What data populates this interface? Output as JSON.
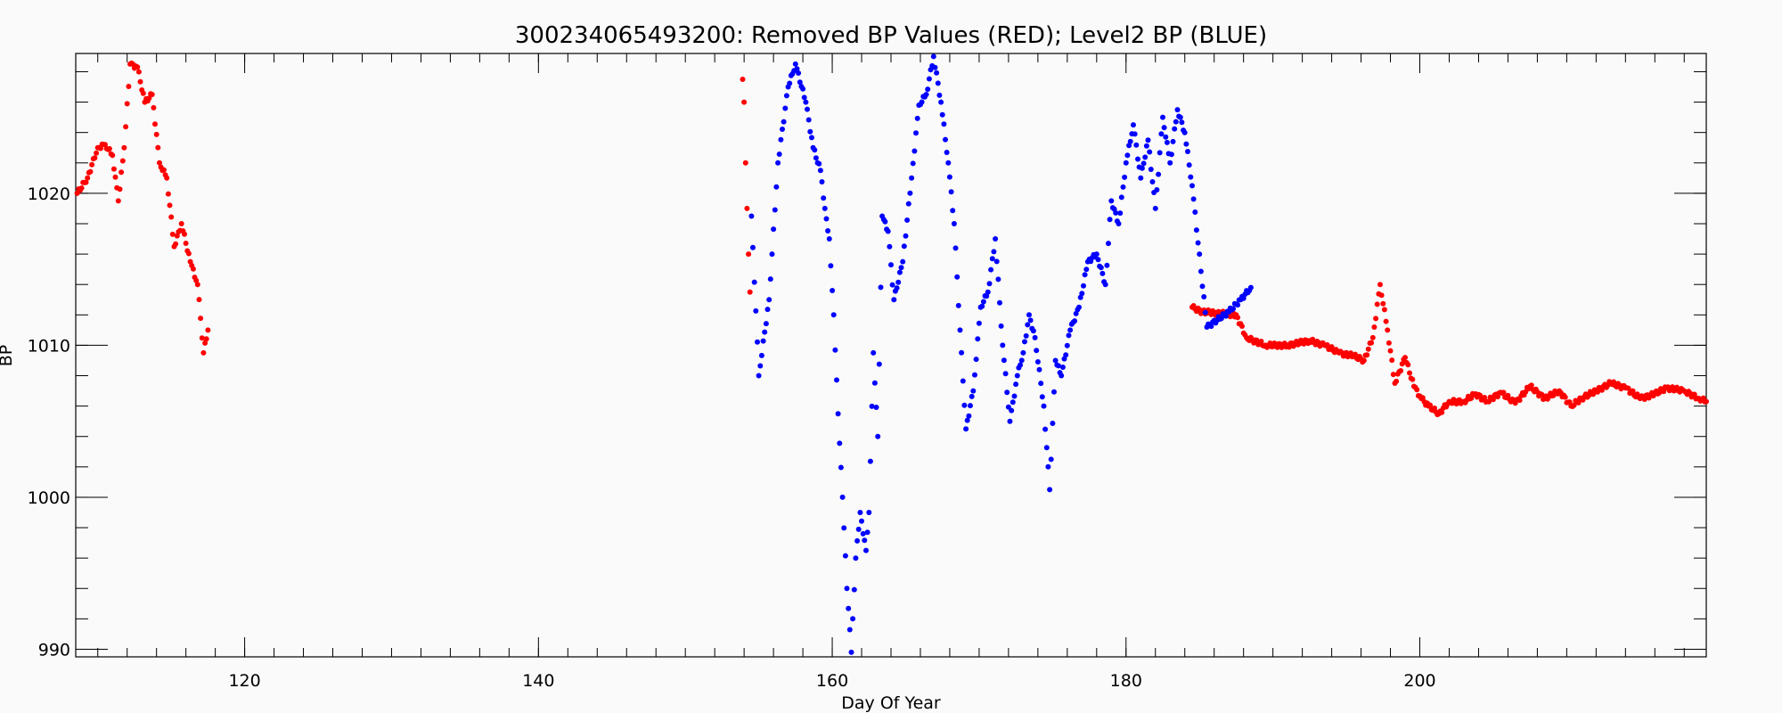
{
  "chart_data": {
    "type": "scatter",
    "title": "300234065493200: Removed BP Values (RED); Level2 BP (BLUE)",
    "xlabel": "Day Of Year",
    "ylabel": "BP",
    "xlim": [
      108.5,
      219.5
    ],
    "ylim": [
      989.5,
      1029.2
    ],
    "x_ticks": [
      120,
      140,
      160,
      180,
      200
    ],
    "y_ticks": [
      990,
      1000,
      1010,
      1020
    ],
    "x_minor_step": 2,
    "y_minor_step": 2,
    "grid": false,
    "series": [
      {
        "color": "#ff0000",
        "anchors": [
          [
            108.6,
            1020
          ],
          [
            109.3,
            1021
          ],
          [
            110,
            1023
          ],
          [
            110.5,
            1023.2
          ],
          [
            111,
            1022.5
          ],
          [
            111.4,
            1019.5
          ],
          [
            111.8,
            1023
          ],
          [
            112.2,
            1028.5
          ],
          [
            112.7,
            1028.3
          ],
          [
            113.2,
            1026
          ],
          [
            113.7,
            1026.5
          ],
          [
            114.2,
            1022
          ],
          [
            114.7,
            1021
          ],
          [
            115.2,
            1016.5
          ],
          [
            115.7,
            1018
          ],
          [
            116.3,
            1015.5
          ],
          [
            116.8,
            1014
          ],
          [
            117.2,
            1009.5
          ],
          [
            117.5,
            1011
          ],
          [
            153.9,
            1027.5
          ],
          [
            154,
            1026
          ],
          [
            154.1,
            1022
          ],
          [
            154.2,
            1019
          ],
          [
            154.3,
            1016
          ],
          [
            154.4,
            1013.5
          ],
          [
            184.5,
            1012.5
          ],
          [
            185.2,
            1012.2
          ],
          [
            187.5,
            1012
          ],
          [
            188.2,
            1010.5
          ],
          [
            189.5,
            1010
          ],
          [
            191,
            1010
          ],
          [
            192.5,
            1010.3
          ],
          [
            193.5,
            1010
          ],
          [
            194.5,
            1009.5
          ],
          [
            195.5,
            1009.3
          ],
          [
            196.2,
            1009
          ],
          [
            196.8,
            1010.5
          ],
          [
            197.3,
            1014
          ],
          [
            197.8,
            1011
          ],
          [
            198.3,
            1007.5
          ],
          [
            199,
            1009.2
          ],
          [
            199.6,
            1007.3
          ],
          [
            200.1,
            1006.5
          ],
          [
            200.6,
            1006
          ],
          [
            201.3,
            1005.5
          ],
          [
            202,
            1006.3
          ],
          [
            203,
            1006.3
          ],
          [
            203.8,
            1006.8
          ],
          [
            204.6,
            1006.3
          ],
          [
            205.5,
            1006.9
          ],
          [
            206.5,
            1006.2
          ],
          [
            207.5,
            1007.3
          ],
          [
            208.5,
            1006.5
          ],
          [
            209.5,
            1007
          ],
          [
            210.3,
            1006
          ],
          [
            211,
            1006.5
          ],
          [
            212,
            1007
          ],
          [
            213,
            1007.5
          ],
          [
            214,
            1007.2
          ],
          [
            215,
            1006.5
          ],
          [
            216,
            1006.8
          ],
          [
            216.8,
            1007.2
          ],
          [
            218,
            1007
          ],
          [
            219,
            1006.5
          ],
          [
            219.5,
            1006.3
          ]
        ]
      },
      {
        "color": "#0000ff",
        "anchors": [
          [
            154.5,
            1018.5
          ],
          [
            155,
            1008
          ],
          [
            155.7,
            1013
          ],
          [
            156.3,
            1022
          ],
          [
            157,
            1027
          ],
          [
            157.5,
            1028.5
          ],
          [
            158.2,
            1026
          ],
          [
            158.7,
            1023
          ],
          [
            159.2,
            1021.5
          ],
          [
            159.5,
            1019
          ],
          [
            159.8,
            1017
          ],
          [
            160.1,
            1012
          ],
          [
            160.4,
            1005.5
          ],
          [
            160.7,
            1000
          ],
          [
            161,
            994
          ],
          [
            161.3,
            989.8
          ],
          [
            161.6,
            996
          ],
          [
            161.9,
            999
          ],
          [
            162.3,
            996.5
          ],
          [
            162.5,
            999
          ],
          [
            162.8,
            1009.5
          ],
          [
            163.1,
            1004
          ],
          [
            163.4,
            1018.5
          ],
          [
            163.8,
            1017.5
          ],
          [
            164.2,
            1013
          ],
          [
            164.8,
            1015.5
          ],
          [
            165.4,
            1021
          ],
          [
            165.9,
            1025.8
          ],
          [
            166.4,
            1026.5
          ],
          [
            166.9,
            1029
          ],
          [
            167.4,
            1026
          ],
          [
            167.9,
            1022
          ],
          [
            168.3,
            1018
          ],
          [
            168.7,
            1011
          ],
          [
            169.1,
            1004.5
          ],
          [
            169.6,
            1007
          ],
          [
            170.1,
            1012.5
          ],
          [
            170.6,
            1013.5
          ],
          [
            171.1,
            1017
          ],
          [
            171.6,
            1010
          ],
          [
            172.1,
            1005
          ],
          [
            172.6,
            1008
          ],
          [
            173,
            1009.5
          ],
          [
            173.4,
            1012
          ],
          [
            173.8,
            1010.5
          ],
          [
            174.4,
            1006
          ],
          [
            174.8,
            1000.5
          ],
          [
            175.2,
            1009
          ],
          [
            175.6,
            1008
          ],
          [
            176.2,
            1011
          ],
          [
            176.8,
            1012.5
          ],
          [
            177.4,
            1015.5
          ],
          [
            178,
            1016
          ],
          [
            178.6,
            1014
          ],
          [
            179,
            1019.5
          ],
          [
            179.5,
            1018
          ],
          [
            180,
            1022
          ],
          [
            180.5,
            1024.5
          ],
          [
            181,
            1021
          ],
          [
            181.5,
            1023.5
          ],
          [
            182,
            1019
          ],
          [
            182.5,
            1025
          ],
          [
            183,
            1022
          ],
          [
            183.5,
            1025.5
          ],
          [
            184,
            1024
          ],
          [
            184.5,
            1020.5
          ],
          [
            185.5,
            1011.2
          ],
          [
            187,
            1012.2
          ],
          [
            187.8,
            1013
          ],
          [
            188.5,
            1013.8
          ]
        ]
      }
    ]
  }
}
